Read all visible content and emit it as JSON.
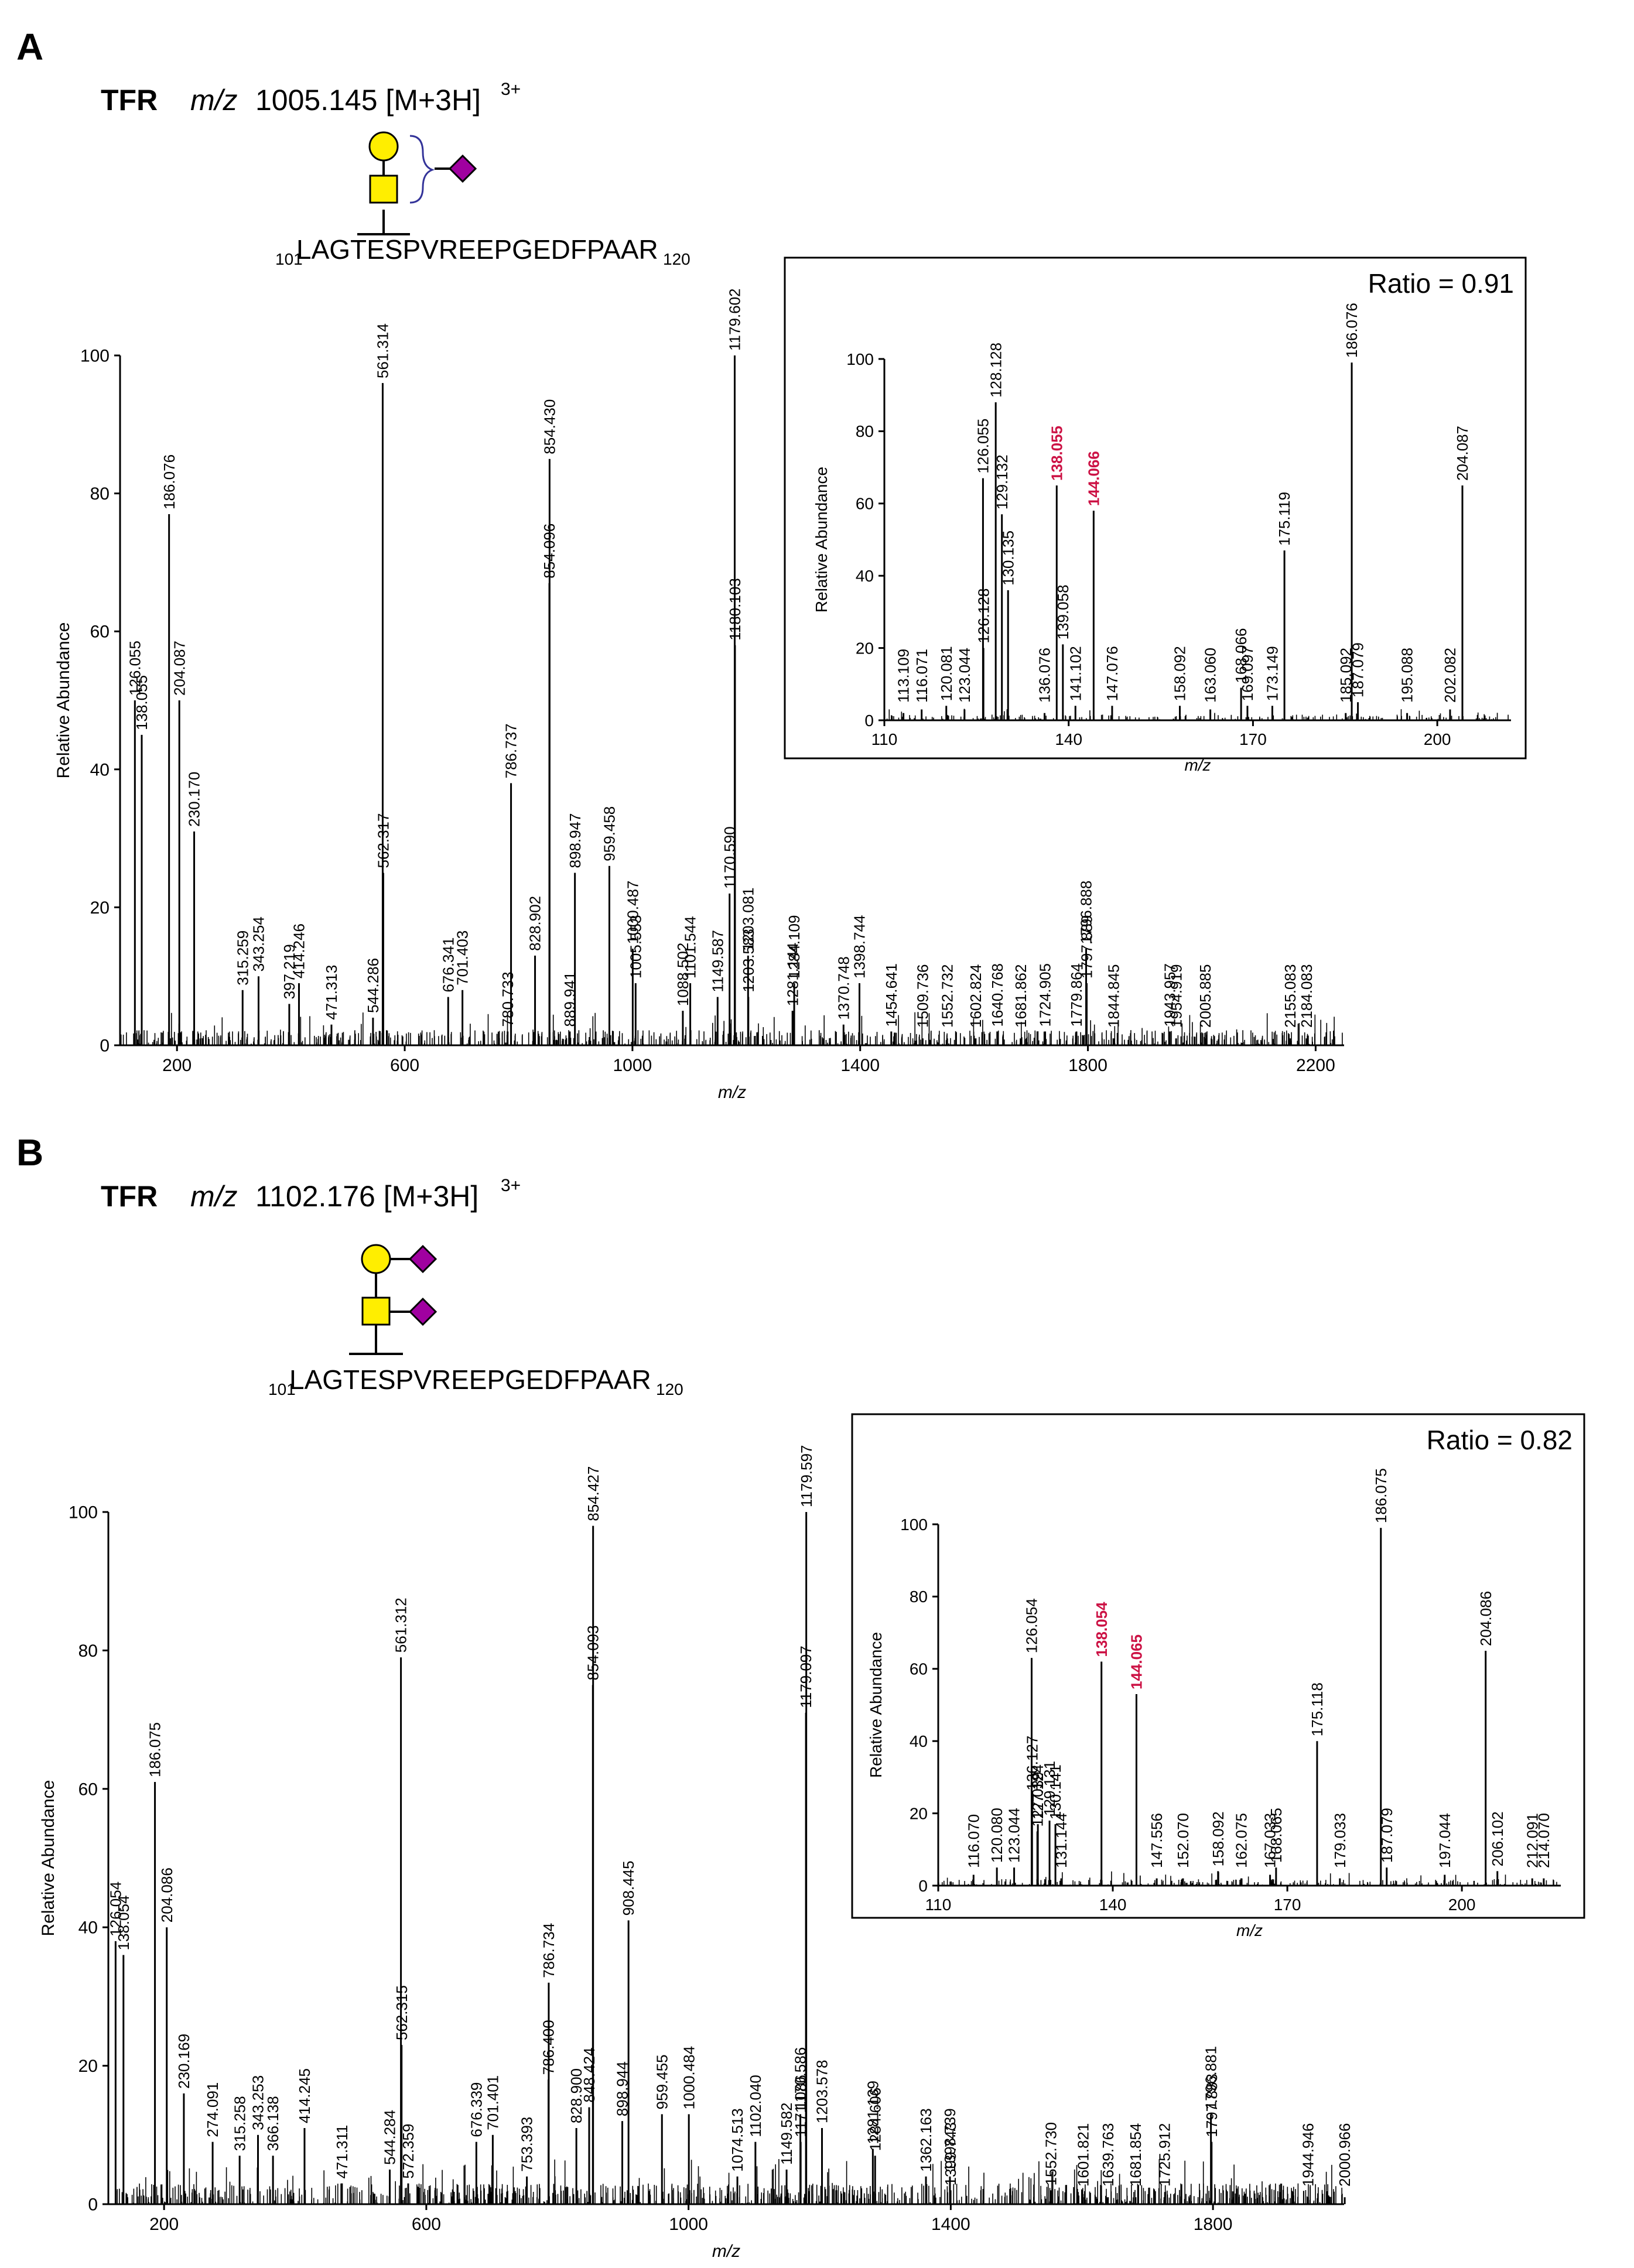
{
  "panels": [
    {
      "letter": "A",
      "protein": "TFR",
      "mz_italic": "m/z",
      "mz_value": "1005.145 [M+3H]",
      "charge": "3+",
      "peptide_start": "101",
      "peptide": "LAGTESPVREEPGEDFPAAR",
      "peptide_end": "120",
      "glycan_colors": {
        "galactose": "#ffee00",
        "galnac": "#ffee00",
        "sialic": "#a000a0"
      }
    },
    {
      "letter": "B",
      "protein": "TFR",
      "mz_italic": "m/z",
      "mz_value": "1102.176 [M+3H]",
      "charge": "3+",
      "peptide_start": "101",
      "peptide": "LAGTESPVREEPGEDFPAAR",
      "peptide_end": "120",
      "glycan_colors": {
        "galactose": "#ffee00",
        "galnac": "#ffee00",
        "sialic": "#a000a0"
      }
    }
  ],
  "chart_data": [
    {
      "id": "A-main",
      "type": "bar",
      "xlabel": "m/z",
      "ylabel": "Relative Abundance",
      "xlim": [
        100,
        2250
      ],
      "ylim": [
        0,
        100
      ],
      "xticks": [
        200,
        600,
        1000,
        1400,
        1800,
        2200
      ],
      "yticks": [
        0,
        20,
        40,
        60,
        80,
        100
      ],
      "peaks": [
        {
          "x": 126.055,
          "y": 50,
          "label": "126.055"
        },
        {
          "x": 138.055,
          "y": 45,
          "label": "138.055"
        },
        {
          "x": 186.076,
          "y": 77,
          "label": "186.076"
        },
        {
          "x": 204.087,
          "y": 50,
          "label": "204.087"
        },
        {
          "x": 230.17,
          "y": 31,
          "label": "230.170"
        },
        {
          "x": 315.259,
          "y": 8,
          "label": "315.259"
        },
        {
          "x": 343.254,
          "y": 10,
          "label": "343.254"
        },
        {
          "x": 397.219,
          "y": 6,
          "label": "397.219"
        },
        {
          "x": 414.246,
          "y": 9,
          "label": "414.246"
        },
        {
          "x": 471.313,
          "y": 3,
          "label": "471.313"
        },
        {
          "x": 544.286,
          "y": 4,
          "label": "544.286"
        },
        {
          "x": 561.314,
          "y": 96,
          "label": "561.314"
        },
        {
          "x": 562.317,
          "y": 25,
          "label": "562.317"
        },
        {
          "x": 676.341,
          "y": 7,
          "label": "676.341"
        },
        {
          "x": 701.403,
          "y": 8,
          "label": "701.403"
        },
        {
          "x": 780.733,
          "y": 2,
          "label": "780.733"
        },
        {
          "x": 786.737,
          "y": 38,
          "label": "786.737"
        },
        {
          "x": 828.902,
          "y": 13,
          "label": "828.902"
        },
        {
          "x": 854.096,
          "y": 67,
          "label": "854.096"
        },
        {
          "x": 854.43,
          "y": 85,
          "label": "854.430"
        },
        {
          "x": 889.941,
          "y": 2,
          "label": "889.941"
        },
        {
          "x": 898.947,
          "y": 25,
          "label": "898.947"
        },
        {
          "x": 959.458,
          "y": 26,
          "label": "959.458"
        },
        {
          "x": 1000.487,
          "y": 14,
          "label": "1000.487"
        },
        {
          "x": 1005.553,
          "y": 9,
          "label": "1005.553"
        },
        {
          "x": 1088.502,
          "y": 5,
          "label": "1088.502"
        },
        {
          "x": 1101.544,
          "y": 9,
          "label": "1101.544"
        },
        {
          "x": 1149.587,
          "y": 7,
          "label": "1149.587"
        },
        {
          "x": 1170.59,
          "y": 22,
          "label": "1170.590"
        },
        {
          "x": 1179.602,
          "y": 100,
          "label": "1179.602"
        },
        {
          "x": 1180.103,
          "y": 58,
          "label": "1180.103"
        },
        {
          "x": 1203.081,
          "y": 13,
          "label": "1203.081"
        },
        {
          "x": 1203.583,
          "y": 7,
          "label": "1203.583"
        },
        {
          "x": 1281.144,
          "y": 5,
          "label": "1281.144"
        },
        {
          "x": 1284.109,
          "y": 9,
          "label": "1284.109"
        },
        {
          "x": 1370.748,
          "y": 3,
          "label": "1370.748"
        },
        {
          "x": 1398.744,
          "y": 9,
          "label": "1398.744"
        },
        {
          "x": 1454.641,
          "y": 2,
          "label": "1454.641"
        },
        {
          "x": 1509.736,
          "y": 1,
          "label": "1509.736"
        },
        {
          "x": 1552.732,
          "y": 1,
          "label": "1552.732"
        },
        {
          "x": 1602.824,
          "y": 1,
          "label": "1602.824"
        },
        {
          "x": 1640.768,
          "y": 2,
          "label": "1640.768"
        },
        {
          "x": 1681.862,
          "y": 1,
          "label": "1681.862"
        },
        {
          "x": 1724.905,
          "y": 2,
          "label": "1724.905"
        },
        {
          "x": 1779.864,
          "y": 2,
          "label": "1779.864"
        },
        {
          "x": 1796.888,
          "y": 14,
          "label": "1796.888"
        },
        {
          "x": 1797.889,
          "y": 9,
          "label": "1797.889"
        },
        {
          "x": 1844.845,
          "y": 1,
          "label": "1844.845"
        },
        {
          "x": 1943.957,
          "y": 2,
          "label": "1943.957"
        },
        {
          "x": 1954.919,
          "y": 1,
          "label": "1954.919"
        },
        {
          "x": 2005.885,
          "y": 1,
          "label": "2005.885"
        },
        {
          "x": 2155.083,
          "y": 1,
          "label": "2155.083"
        },
        {
          "x": 2184.083,
          "y": 1,
          "label": "2184.083"
        }
      ]
    },
    {
      "id": "A-inset",
      "type": "bar",
      "ratio_label": "Ratio = 0.91",
      "xlabel": "m/z",
      "ylabel": "Relative Abundance",
      "xlim": [
        110,
        212
      ],
      "ylim": [
        0,
        100
      ],
      "xticks": [
        110,
        140,
        170,
        200
      ],
      "yticks": [
        0,
        20,
        40,
        60,
        80,
        100
      ],
      "highlight_color": "#cc1144",
      "peaks": [
        {
          "x": 113.109,
          "y": 2,
          "label": "113.109"
        },
        {
          "x": 116.071,
          "y": 3,
          "label": "116.071"
        },
        {
          "x": 120.081,
          "y": 4,
          "label": "120.081"
        },
        {
          "x": 123.044,
          "y": 3,
          "label": "123.044"
        },
        {
          "x": 126.055,
          "y": 67,
          "label": "126.055"
        },
        {
          "x": 126.128,
          "y": 20,
          "label": "126.128"
        },
        {
          "x": 128.128,
          "y": 88,
          "label": "128.128"
        },
        {
          "x": 129.132,
          "y": 57,
          "label": "129.132"
        },
        {
          "x": 130.135,
          "y": 36,
          "label": "130.135"
        },
        {
          "x": 136.076,
          "y": 2,
          "label": "136.076"
        },
        {
          "x": 138.055,
          "y": 65,
          "label": "138.055",
          "highlight": true
        },
        {
          "x": 139.058,
          "y": 21,
          "label": "139.058"
        },
        {
          "x": 141.102,
          "y": 4,
          "label": "141.102"
        },
        {
          "x": 144.066,
          "y": 58,
          "label": "144.066",
          "highlight": true
        },
        {
          "x": 147.076,
          "y": 4,
          "label": "147.076"
        },
        {
          "x": 158.092,
          "y": 4,
          "label": "158.092"
        },
        {
          "x": 163.06,
          "y": 3,
          "label": "163.060"
        },
        {
          "x": 168.066,
          "y": 9,
          "label": "168.066"
        },
        {
          "x": 169.097,
          "y": 4,
          "label": "169.097"
        },
        {
          "x": 173.149,
          "y": 4,
          "label": "173.149"
        },
        {
          "x": 175.119,
          "y": 47,
          "label": "175.119"
        },
        {
          "x": 185.092,
          "y": 2,
          "label": "185.092"
        },
        {
          "x": 186.076,
          "y": 99,
          "label": "186.076"
        },
        {
          "x": 187.079,
          "y": 5,
          "label": "187.079"
        },
        {
          "x": 195.088,
          "y": 2,
          "label": "195.088"
        },
        {
          "x": 202.082,
          "y": 3,
          "label": "202.082"
        },
        {
          "x": 204.087,
          "y": 65,
          "label": "204.087"
        }
      ]
    },
    {
      "id": "B-main",
      "type": "bar",
      "xlabel": "m/z",
      "ylabel": "Relative Abundance",
      "xlim": [
        115,
        2000
      ],
      "ylim": [
        0,
        100
      ],
      "xticks": [
        200,
        600,
        1000,
        1400,
        1800
      ],
      "yticks": [
        0,
        20,
        40,
        60,
        80,
        100
      ],
      "peaks": [
        {
          "x": 126.054,
          "y": 38,
          "label": "126.054"
        },
        {
          "x": 138.054,
          "y": 36,
          "label": "138.054"
        },
        {
          "x": 186.075,
          "y": 61,
          "label": "186.075"
        },
        {
          "x": 204.086,
          "y": 40,
          "label": "204.086"
        },
        {
          "x": 230.169,
          "y": 16,
          "label": "230.169"
        },
        {
          "x": 274.091,
          "y": 9,
          "label": "274.091"
        },
        {
          "x": 315.258,
          "y": 7,
          "label": "315.258"
        },
        {
          "x": 343.253,
          "y": 10,
          "label": "343.253"
        },
        {
          "x": 366.138,
          "y": 7,
          "label": "366.138"
        },
        {
          "x": 414.245,
          "y": 11,
          "label": "414.245"
        },
        {
          "x": 471.311,
          "y": 3,
          "label": "471.311"
        },
        {
          "x": 544.284,
          "y": 5,
          "label": "544.284"
        },
        {
          "x": 561.312,
          "y": 79,
          "label": "561.312"
        },
        {
          "x": 562.315,
          "y": 23,
          "label": "562.315"
        },
        {
          "x": 572.359,
          "y": 3,
          "label": "572.359"
        },
        {
          "x": 676.339,
          "y": 9,
          "label": "676.339"
        },
        {
          "x": 701.401,
          "y": 10,
          "label": "701.401"
        },
        {
          "x": 753.393,
          "y": 4,
          "label": "753.393"
        },
        {
          "x": 786.4,
          "y": 18,
          "label": "786.400"
        },
        {
          "x": 786.734,
          "y": 32,
          "label": "786.734"
        },
        {
          "x": 828.9,
          "y": 11,
          "label": "828.900"
        },
        {
          "x": 848.424,
          "y": 14,
          "label": "848.424"
        },
        {
          "x": 854.093,
          "y": 75,
          "label": "854.093"
        },
        {
          "x": 854.427,
          "y": 98,
          "label": "854.427"
        },
        {
          "x": 898.944,
          "y": 12,
          "label": "898.944"
        },
        {
          "x": 908.445,
          "y": 41,
          "label": "908.445"
        },
        {
          "x": 959.455,
          "y": 13,
          "label": "959.455"
        },
        {
          "x": 1000.484,
          "y": 13,
          "label": "1000.484"
        },
        {
          "x": 1074.513,
          "y": 4,
          "label": "1074.513"
        },
        {
          "x": 1102.04,
          "y": 9,
          "label": "1102.040"
        },
        {
          "x": 1149.582,
          "y": 5,
          "label": "1149.582"
        },
        {
          "x": 1170.586,
          "y": 13,
          "label": "1170.586"
        },
        {
          "x": 1171.086,
          "y": 9,
          "label": "1171.086"
        },
        {
          "x": 1179.097,
          "y": 71,
          "label": "1179.097"
        },
        {
          "x": 1179.597,
          "y": 100,
          "label": "1179.597"
        },
        {
          "x": 1203.578,
          "y": 11,
          "label": "1203.578"
        },
        {
          "x": 1281.139,
          "y": 8,
          "label": "1281.139"
        },
        {
          "x": 1284.606,
          "y": 7,
          "label": "1284.606"
        },
        {
          "x": 1362.163,
          "y": 4,
          "label": "1362.163"
        },
        {
          "x": 1398.739,
          "y": 4,
          "label": "1398.739"
        },
        {
          "x": 1399.743,
          "y": 2,
          "label": "1399.743"
        },
        {
          "x": 1552.73,
          "y": 2,
          "label": "1552.730"
        },
        {
          "x": 1601.821,
          "y": 1,
          "label": "1601.821"
        },
        {
          "x": 1639.763,
          "y": 1,
          "label": "1639.763"
        },
        {
          "x": 1681.854,
          "y": 1,
          "label": "1681.854"
        },
        {
          "x": 1725.912,
          "y": 1,
          "label": "1725.912"
        },
        {
          "x": 1796.881,
          "y": 13,
          "label": "1796.881"
        },
        {
          "x": 1797.883,
          "y": 9,
          "label": "1797.883"
        },
        {
          "x": 1944.946,
          "y": 1,
          "label": "1944.946"
        },
        {
          "x": 2000.966,
          "y": 1,
          "label": "2000.966"
        }
      ]
    },
    {
      "id": "B-inset",
      "type": "bar",
      "ratio_label": "Ratio = 0.82",
      "xlabel": "m/z",
      "ylabel": "Relative Abundance",
      "xlim": [
        110,
        217
      ],
      "ylim": [
        0,
        100
      ],
      "xticks": [
        110,
        140,
        170,
        200
      ],
      "yticks": [
        0,
        20,
        40,
        60,
        80,
        100
      ],
      "highlight_color": "#cc1144",
      "peaks": [
        {
          "x": 116.07,
          "y": 3,
          "label": "116.070"
        },
        {
          "x": 120.08,
          "y": 5,
          "label": "120.080"
        },
        {
          "x": 123.044,
          "y": 5,
          "label": "123.044"
        },
        {
          "x": 126.054,
          "y": 63,
          "label": "126.054"
        },
        {
          "x": 126.127,
          "y": 25,
          "label": "126.127"
        },
        {
          "x": 127.124,
          "y": 17,
          "label": "127.124"
        },
        {
          "x": 127.039,
          "y": 15,
          "label": "127.039"
        },
        {
          "x": 129.131,
          "y": 18,
          "label": "129.131"
        },
        {
          "x": 130.141,
          "y": 17,
          "label": "130.141"
        },
        {
          "x": 131.144,
          "y": 2,
          "label": "131.144"
        },
        {
          "x": 138.054,
          "y": 62,
          "label": "138.054",
          "highlight": true
        },
        {
          "x": 144.065,
          "y": 53,
          "label": "144.065",
          "highlight": true
        },
        {
          "x": 147.556,
          "y": 2,
          "label": "147.556"
        },
        {
          "x": 152.07,
          "y": 2,
          "label": "152.070"
        },
        {
          "x": 158.092,
          "y": 4,
          "label": "158.092"
        },
        {
          "x": 162.075,
          "y": 2,
          "label": "162.075"
        },
        {
          "x": 167.033,
          "y": 3,
          "label": "167.033"
        },
        {
          "x": 168.065,
          "y": 5,
          "label": "168.065"
        },
        {
          "x": 175.118,
          "y": 40,
          "label": "175.118"
        },
        {
          "x": 179.033,
          "y": 2,
          "label": "179.033"
        },
        {
          "x": 186.075,
          "y": 99,
          "label": "186.075"
        },
        {
          "x": 187.079,
          "y": 5,
          "label": "187.079"
        },
        {
          "x": 197.044,
          "y": 3,
          "label": "197.044"
        },
        {
          "x": 204.086,
          "y": 65,
          "label": "204.086"
        },
        {
          "x": 206.102,
          "y": 4,
          "label": "206.102"
        },
        {
          "x": 212.091,
          "y": 2,
          "label": "212.091"
        },
        {
          "x": 214.07,
          "y": 2,
          "label": "214.070"
        }
      ]
    }
  ]
}
